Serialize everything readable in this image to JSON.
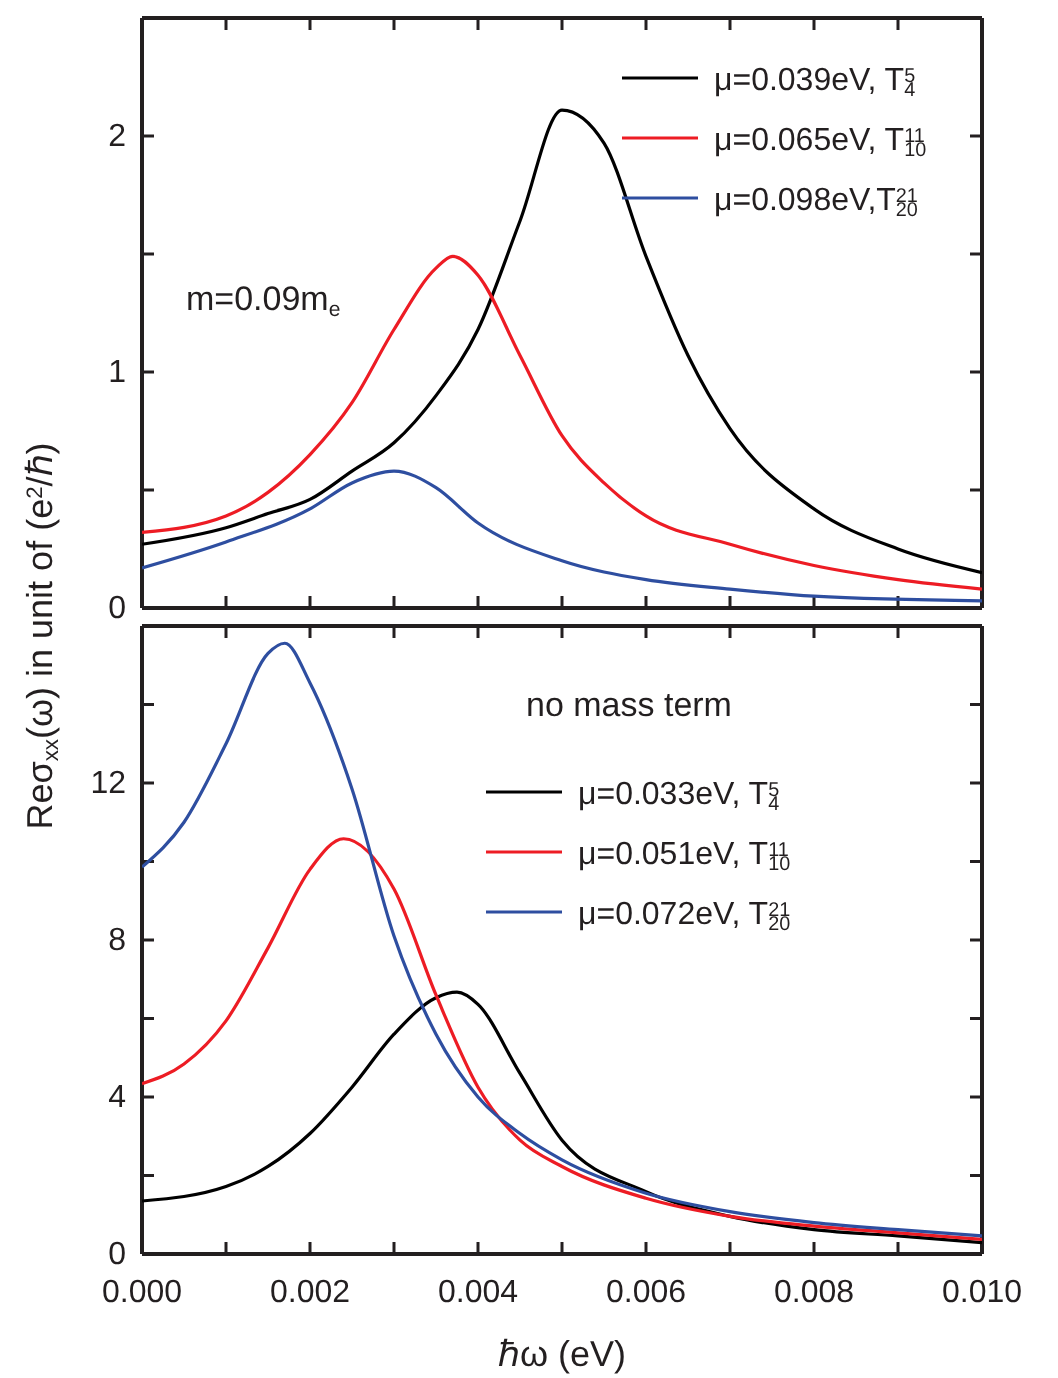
{
  "chart_data": [
    {
      "type": "line",
      "ylabel": "Reσ$_{xx}$(ω) in unit of (e$^{2}$/ℏ)",
      "annotations": [
        "m=0.09m$_{e}$"
      ],
      "legend": "top right",
      "tick_labels": "y",
      "line_style": "solid",
      "marker": "none",
      "xlim": [
        0,
        0.01
      ],
      "xticks": [
        {
          "value": 0,
          "label": null
        },
        {
          "value": 0.001,
          "label": null
        },
        {
          "value": 0.002,
          "label": null
        },
        {
          "value": 0.003,
          "label": null
        },
        {
          "value": 0.004,
          "label": null
        },
        {
          "value": 0.005,
          "label": null
        },
        {
          "value": 0.006,
          "label": null
        },
        {
          "value": 0.007,
          "label": null
        },
        {
          "value": 0.008,
          "label": null
        },
        {
          "value": 0.009,
          "label": null
        },
        {
          "value": 0.01,
          "label": null
        }
      ],
      "ylim": [
        0,
        2.5
      ],
      "yticks": [
        0,
        {
          "value": 0.5,
          "label": null
        },
        1,
        {
          "value": 1.5,
          "label": null
        },
        2
      ],
      "series": [
        {
          "name": "μ=0.039eV, T$^{5}$$_{4}$",
          "color": "#000000",
          "x": [
            0,
            0.001,
            0.0015,
            0.002,
            0.0025,
            0.003,
            0.0035,
            0.004,
            0.0045,
            0.005,
            0.0055,
            0.006,
            0.0065,
            0.007,
            0.008,
            0.009,
            0.01
          ],
          "values": [
            0.27,
            0.34,
            0.4,
            0.46,
            0.58,
            0.7,
            0.9,
            1.18,
            1.64,
            2.11,
            1.97,
            1.49,
            1.07,
            0.76,
            0.42,
            0.25,
            0.15
          ]
        },
        {
          "name": "μ=0.065eV, T$^{11}$$_{10}$",
          "color": "#ed1c24",
          "x": [
            0,
            0.001,
            0.0015,
            0.002,
            0.0025,
            0.003,
            0.0035,
            0.0037,
            0.004,
            0.0045,
            0.005,
            0.0055,
            0.006,
            0.007,
            0.008,
            0.009,
            0.01
          ],
          "values": [
            0.32,
            0.39,
            0.49,
            0.65,
            0.87,
            1.18,
            1.44,
            1.49,
            1.41,
            1.07,
            0.73,
            0.53,
            0.39,
            0.27,
            0.18,
            0.12,
            0.08
          ]
        },
        {
          "name": "μ=0.098eV,T$^{21}$$_{20}$",
          "color": "#2e4ea0",
          "x": [
            0,
            0.001,
            0.002,
            0.0025,
            0.003,
            0.0035,
            0.004,
            0.005,
            0.006,
            0.007,
            0.008,
            0.01
          ],
          "values": [
            0.17,
            0.28,
            0.42,
            0.53,
            0.58,
            0.51,
            0.36,
            0.2,
            0.12,
            0.08,
            0.05,
            0.03
          ]
        }
      ]
    },
    {
      "type": "line",
      "xlabel": "ℏω (eV)",
      "annotations": [
        "no mass term"
      ],
      "legend": "top right",
      "line_style": "solid",
      "marker": "none",
      "xlim": [
        0,
        0.01
      ],
      "xticks": [
        {
          "value": 0,
          "label": "0.000"
        },
        {
          "value": 0.001,
          "label": null
        },
        {
          "value": 0.002,
          "label": "0.002"
        },
        {
          "value": 0.003,
          "label": null
        },
        {
          "value": 0.004,
          "label": "0.004"
        },
        {
          "value": 0.005,
          "label": null
        },
        {
          "value": 0.006,
          "label": "0.006"
        },
        {
          "value": 0.007,
          "label": null
        },
        {
          "value": 0.008,
          "label": "0.008"
        },
        {
          "value": 0.009,
          "label": null
        },
        {
          "value": 0.01,
          "label": "0.010"
        }
      ],
      "ylim": [
        0,
        16
      ],
      "yticks": [
        0,
        {
          "value": 2,
          "label": null
        },
        4,
        {
          "value": 6,
          "label": null
        },
        8,
        {
          "value": 10,
          "label": null
        },
        12,
        {
          "value": 14,
          "label": null
        }
      ],
      "series": [
        {
          "name": "μ=0.033eV, T$^{5}$$_{4}$",
          "color": "#000000",
          "x": [
            0,
            0.001,
            0.0015,
            0.002,
            0.0025,
            0.003,
            0.0035,
            0.00375,
            0.004,
            0.0045,
            0.005,
            0.006,
            0.007,
            0.008,
            0.009,
            0.01
          ],
          "values": [
            1.35,
            1.72,
            2.23,
            3.07,
            4.25,
            5.6,
            6.53,
            6.67,
            6.36,
            4.6,
            2.9,
            1.59,
            0.96,
            0.62,
            0.46,
            0.29
          ]
        },
        {
          "name": "μ=0.051eV, T$^{11}$$_{10}$",
          "color": "#ed1c24",
          "x": [
            0,
            0.0005,
            0.001,
            0.0015,
            0.002,
            0.0024,
            0.003,
            0.0035,
            0.004,
            0.0045,
            0.005,
            0.006,
            0.007,
            0.008,
            0.009,
            0.01
          ],
          "values": [
            4.34,
            4.84,
            5.94,
            7.8,
            9.8,
            10.58,
            9.3,
            6.6,
            4.25,
            2.9,
            2.23,
            1.42,
            0.96,
            0.71,
            0.54,
            0.37
          ]
        },
        {
          "name": "μ=0.072eV, T$^{21}$$_{20}$",
          "color": "#2e4ea0",
          "x": [
            0,
            0.0005,
            0.001,
            0.0015,
            0.0017,
            0.002,
            0.0025,
            0.003,
            0.0035,
            0.004,
            0.0045,
            0.005,
            0.006,
            0.007,
            0.008,
            0.009,
            0.01
          ],
          "values": [
            9.86,
            11.0,
            13.0,
            15.3,
            15.56,
            14.55,
            11.85,
            8.1,
            5.6,
            4.0,
            3.07,
            2.4,
            1.55,
            1.08,
            0.8,
            0.62,
            0.46
          ]
        }
      ]
    }
  ]
}
